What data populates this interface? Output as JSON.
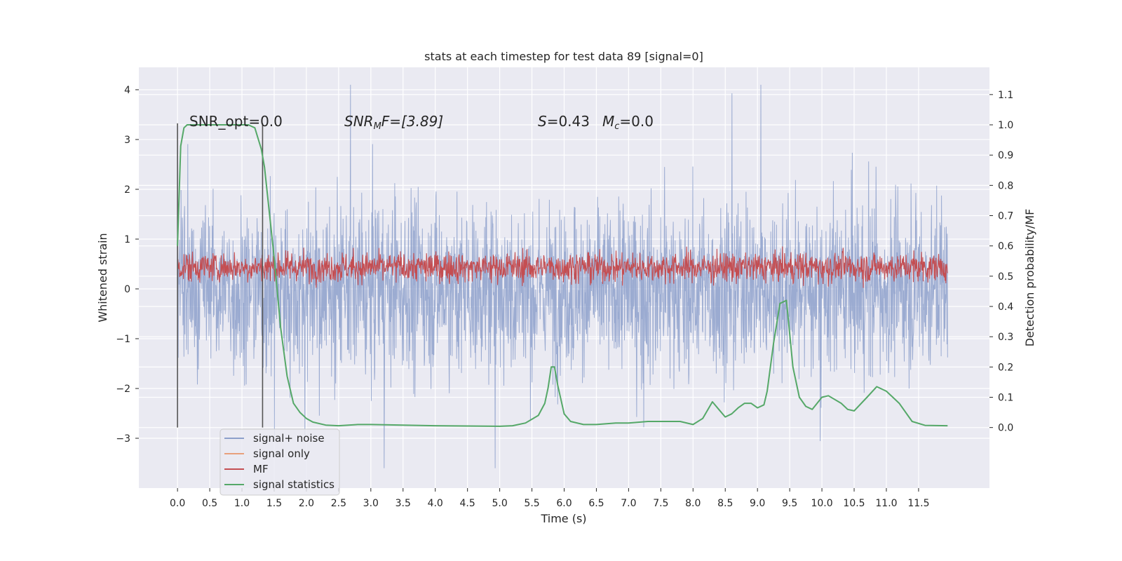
{
  "chart_data": {
    "type": "line",
    "title": "stats at each timestep for test data 89 [signal=0]",
    "xlabel": "Time (s)",
    "ylabel": "Whitened strain",
    "y2label": "Detection probability/MF",
    "xlim": [
      -0.6,
      12.6
    ],
    "ylim": [
      -4.0,
      4.45
    ],
    "y2lim": [
      -0.2,
      1.19
    ],
    "x_ticks": [
      "0.0",
      "0.5",
      "1.0",
      "1.5",
      "2.0",
      "2.5",
      "3.0",
      "3.5",
      "4.0",
      "4.5",
      "5.0",
      "5.5",
      "6.0",
      "6.5",
      "7.0",
      "7.5",
      "8.0",
      "8.5",
      "9.0",
      "9.5",
      "10.0",
      "10.5",
      "11.0",
      "11.5"
    ],
    "y_ticks": [
      "4",
      "3",
      "2",
      "1",
      "0",
      "−1",
      "−2",
      "−3"
    ],
    "y2_ticks": [
      "1.1",
      "1.0",
      "0.9",
      "0.8",
      "0.7",
      "0.6",
      "0.5",
      "0.4",
      "0.3",
      "0.2",
      "0.1",
      "0.0"
    ],
    "grid": true,
    "legend_position": "lower-left",
    "annotations": {
      "snr_opt": "SNR_opt=0.0",
      "snr_mf_sym": "SNR",
      "snr_mf_sub": "M",
      "snr_mf_rest": "F=[3.89]",
      "s_sym": "S",
      "s_rest": "=0.43",
      "mc_sym": "M",
      "mc_sub": "c",
      "mc_rest": "=0.0"
    },
    "vertical_markers": [
      0.0,
      1.32
    ],
    "series": [
      {
        "name": "signal+ noise",
        "color": "#8da0cb",
        "axis": "left",
        "t_range": [
          0.0,
          11.95
        ],
        "y_range_approx": [
          -3.6,
          4.1
        ]
      },
      {
        "name": "signal only",
        "color": "#e8a07c",
        "axis": "left",
        "values": []
      },
      {
        "name": "MF",
        "color": "#c44e52",
        "axis": "right",
        "t_range": [
          0.0,
          11.95
        ],
        "y_range_approx": [
          0.46,
          0.62
        ]
      },
      {
        "name": "signal statistics",
        "color": "#55a868",
        "axis": "right",
        "t": [
          0.0,
          0.05,
          0.1,
          0.15,
          0.2,
          0.3,
          0.5,
          0.8,
          1.0,
          1.1,
          1.2,
          1.3,
          1.35,
          1.4,
          1.5,
          1.6,
          1.7,
          1.8,
          1.9,
          2.0,
          2.1,
          2.3,
          2.5,
          2.8,
          3.0,
          3.5,
          4.0,
          4.5,
          5.0,
          5.2,
          5.4,
          5.6,
          5.7,
          5.75,
          5.8,
          5.85,
          5.9,
          6.0,
          6.1,
          6.3,
          6.5,
          6.8,
          7.0,
          7.3,
          7.5,
          7.8,
          8.0,
          8.15,
          8.3,
          8.4,
          8.5,
          8.6,
          8.7,
          8.8,
          8.9,
          9.0,
          9.1,
          9.15,
          9.25,
          9.35,
          9.45,
          9.55,
          9.65,
          9.75,
          9.85,
          10.0,
          10.1,
          10.3,
          10.4,
          10.5,
          10.7,
          10.85,
          11.0,
          11.2,
          11.4,
          11.6,
          11.95
        ],
        "values": [
          0.6,
          0.93,
          0.99,
          1.0,
          1.0,
          1.0,
          1.0,
          1.0,
          1.0,
          1.0,
          0.99,
          0.92,
          0.86,
          0.76,
          0.56,
          0.33,
          0.17,
          0.08,
          0.05,
          0.03,
          0.018,
          0.008,
          0.006,
          0.01,
          0.01,
          0.008,
          0.006,
          0.005,
          0.004,
          0.006,
          0.015,
          0.04,
          0.08,
          0.13,
          0.2,
          0.2,
          0.14,
          0.045,
          0.02,
          0.01,
          0.01,
          0.015,
          0.015,
          0.02,
          0.02,
          0.02,
          0.01,
          0.03,
          0.085,
          0.06,
          0.035,
          0.045,
          0.065,
          0.08,
          0.08,
          0.065,
          0.075,
          0.12,
          0.28,
          0.41,
          0.42,
          0.2,
          0.1,
          0.07,
          0.06,
          0.1,
          0.105,
          0.08,
          0.06,
          0.055,
          0.1,
          0.135,
          0.12,
          0.08,
          0.02,
          0.007,
          0.006
        ]
      }
    ]
  }
}
